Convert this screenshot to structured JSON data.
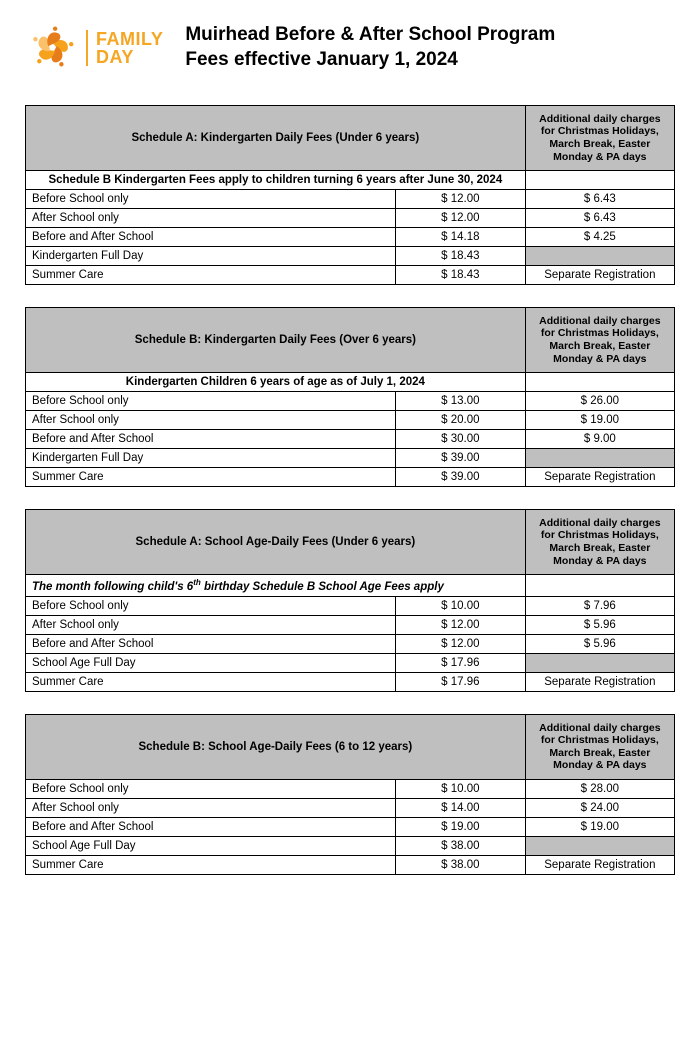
{
  "brand": {
    "line1": "FAMILY",
    "line2": "DAY"
  },
  "title": {
    "line1": "Muirhead Before & After School Program",
    "line2": "Fees effective January 1, 2024"
  },
  "additional_header": "Additional daily charges for Christmas Holidays, March Break, Easter Monday & PA days",
  "tables": [
    {
      "schedule": "Schedule A:  Kindergarten Daily Fees (Under 6 years)",
      "sub": "Schedule B Kindergarten Fees apply to children turning 6 years after June 30, 2024",
      "sub_style": "center",
      "rows": [
        {
          "label": "Before School only",
          "fee": "$ 12.00",
          "extra": "$ 6.43"
        },
        {
          "label": "After School only",
          "fee": "$ 12.00",
          "extra": "$ 6.43"
        },
        {
          "label": "Before and After School",
          "fee": "$ 14.18",
          "extra": "$ 4.25"
        },
        {
          "label": "Kindergarten Full Day",
          "fee": "$ 18.43",
          "extra": "",
          "grey": true
        },
        {
          "label": "Summer Care",
          "fee": "$ 18.43",
          "extra": "Separate Registration"
        }
      ]
    },
    {
      "schedule": "Schedule B:  Kindergarten Daily Fees (Over 6 years)",
      "sub": "Kindergarten Children 6 years of age as of July 1, 2024",
      "sub_style": "center",
      "rows": [
        {
          "label": "Before School only",
          "fee": "$ 13.00",
          "extra": "$ 26.00"
        },
        {
          "label": "After School only",
          "fee": "$ 20.00",
          "extra": "$ 19.00"
        },
        {
          "label": "Before and After School",
          "fee": "$ 30.00",
          "extra": "$ 9.00"
        },
        {
          "label": "Kindergarten Full Day",
          "fee": "$ 39.00",
          "extra": "",
          "grey": true
        },
        {
          "label": "Summer Care",
          "fee": "$ 39.00",
          "extra": "Separate Registration"
        }
      ]
    },
    {
      "schedule": "Schedule A:  School Age-Daily Fees (Under 6 years)",
      "sub_html": "The month following child's 6<sup>th</sup> birthday Schedule B School Age Fees apply",
      "sub_style": "italic-left",
      "rows": [
        {
          "label": "Before School only",
          "fee": "$ 10.00",
          "extra": "$ 7.96"
        },
        {
          "label": "After School only",
          "fee": "$ 12.00",
          "extra": "$ 5.96"
        },
        {
          "label": "Before and After School",
          "fee": "$ 12.00",
          "extra": "$ 5.96"
        },
        {
          "label": "School Age Full Day",
          "fee": "$ 17.96",
          "extra": "",
          "grey": true
        },
        {
          "label": "Summer Care",
          "fee": "$ 17.96",
          "extra": "Separate Registration"
        }
      ]
    },
    {
      "schedule": "Schedule B:  School Age-Daily Fees (6 to 12 years)",
      "sub": null,
      "rows": [
        {
          "label": "Before School only",
          "fee": "$ 10.00",
          "extra": "$ 28.00"
        },
        {
          "label": "After School only",
          "fee": "$ 14.00",
          "extra": "$ 24.00"
        },
        {
          "label": "Before and After School",
          "fee": "$ 19.00",
          "extra": "$ 19.00"
        },
        {
          "label": "School Age Full Day",
          "fee": "$ 38.00",
          "extra": "",
          "grey": true
        },
        {
          "label": "Summer Care",
          "fee": "$ 38.00",
          "extra": "Separate Registration"
        }
      ]
    }
  ]
}
